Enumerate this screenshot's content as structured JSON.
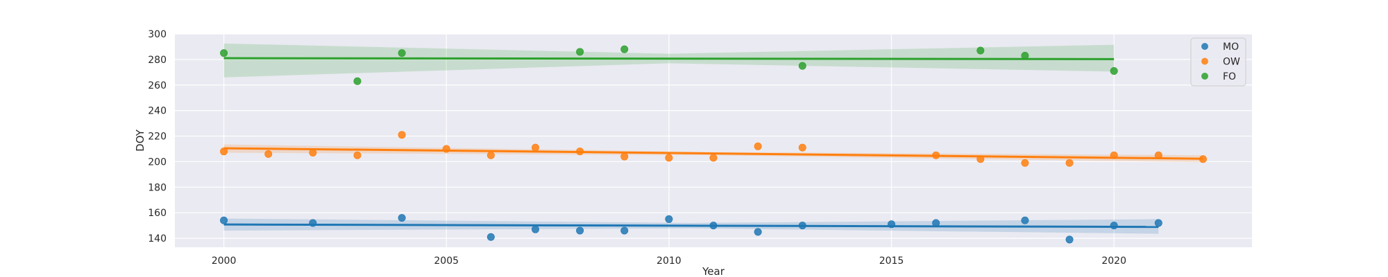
{
  "chart_data": {
    "type": "scatter",
    "xlabel": "Year",
    "ylabel": "DOY",
    "xlim": [
      1998.9,
      2023.1
    ],
    "ylim": [
      133,
      300
    ],
    "xticks": [
      2000,
      2005,
      2010,
      2015,
      2020
    ],
    "yticks": [
      140,
      160,
      180,
      200,
      220,
      240,
      260,
      280,
      300
    ],
    "grid": true,
    "legend_position": "top-right",
    "series": [
      {
        "name": "MO",
        "color": "#1f77b4",
        "points": [
          {
            "x": 2000,
            "y": 154
          },
          {
            "x": 2002,
            "y": 152
          },
          {
            "x": 2004,
            "y": 156
          },
          {
            "x": 2006,
            "y": 141
          },
          {
            "x": 2007,
            "y": 147
          },
          {
            "x": 2008,
            "y": 146
          },
          {
            "x": 2009,
            "y": 146
          },
          {
            "x": 2010,
            "y": 155
          },
          {
            "x": 2011,
            "y": 150
          },
          {
            "x": 2012,
            "y": 145
          },
          {
            "x": 2013,
            "y": 150
          },
          {
            "x": 2015,
            "y": 151
          },
          {
            "x": 2016,
            "y": 152
          },
          {
            "x": 2018,
            "y": 154
          },
          {
            "x": 2019,
            "y": 139
          },
          {
            "x": 2020,
            "y": 150
          },
          {
            "x": 2021,
            "y": 152
          }
        ],
        "trend": {
          "x": [
            2000,
            2021
          ],
          "y": [
            150.8,
            148.9
          ]
        },
        "ci": {
          "x": [
            2000,
            2010.5,
            2021
          ],
          "upper": [
            155.5,
            152.0,
            155.0
          ],
          "lower": [
            146.0,
            147.8,
            143.5
          ]
        }
      },
      {
        "name": "OW",
        "color": "#ff7f0e",
        "points": [
          {
            "x": 2000,
            "y": 208
          },
          {
            "x": 2001,
            "y": 206
          },
          {
            "x": 2002,
            "y": 207
          },
          {
            "x": 2003,
            "y": 205
          },
          {
            "x": 2004,
            "y": 221
          },
          {
            "x": 2005,
            "y": 210
          },
          {
            "x": 2006,
            "y": 205
          },
          {
            "x": 2007,
            "y": 211
          },
          {
            "x": 2008,
            "y": 208
          },
          {
            "x": 2009,
            "y": 204
          },
          {
            "x": 2010,
            "y": 203
          },
          {
            "x": 2011,
            "y": 203
          },
          {
            "x": 2012,
            "y": 212
          },
          {
            "x": 2013,
            "y": 211
          },
          {
            "x": 2016,
            "y": 205
          },
          {
            "x": 2017,
            "y": 202
          },
          {
            "x": 2018,
            "y": 199
          },
          {
            "x": 2019,
            "y": 199
          },
          {
            "x": 2020,
            "y": 205
          },
          {
            "x": 2021,
            "y": 205
          },
          {
            "x": 2022,
            "y": 202
          }
        ],
        "trend": {
          "x": [
            2000,
            2022
          ],
          "y": [
            210.5,
            202.3
          ]
        },
        "ci": {
          "x": [
            2000,
            2011,
            2022
          ],
          "upper": [
            213.5,
            207.5,
            205.0
          ],
          "lower": [
            207.0,
            205.0,
            199.5
          ]
        }
      },
      {
        "name": "FO",
        "color": "#2ca02c",
        "points": [
          {
            "x": 2000,
            "y": 285
          },
          {
            "x": 2003,
            "y": 263
          },
          {
            "x": 2004,
            "y": 285
          },
          {
            "x": 2008,
            "y": 286
          },
          {
            "x": 2009,
            "y": 288
          },
          {
            "x": 2013,
            "y": 275
          },
          {
            "x": 2017,
            "y": 287
          },
          {
            "x": 2018,
            "y": 283
          },
          {
            "x": 2020,
            "y": 271
          }
        ],
        "trend": {
          "x": [
            2000,
            2020
          ],
          "y": [
            281.0,
            280.3
          ]
        },
        "ci": {
          "x": [
            2000,
            2010,
            2020
          ],
          "upper": [
            292.5,
            284.5,
            291.5
          ],
          "lower": [
            266.0,
            277.0,
            270.5
          ]
        }
      }
    ]
  }
}
